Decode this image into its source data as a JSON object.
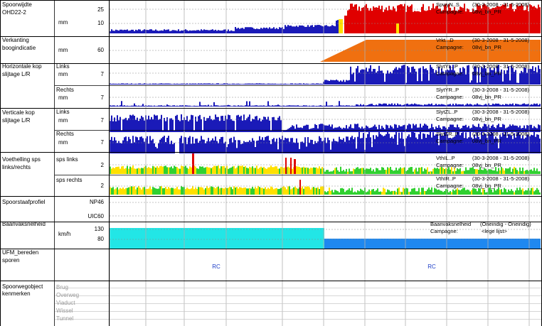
{
  "colors": {
    "blue": "#1a1ab8",
    "red": "#e00000",
    "orange": "#f07010",
    "yellow": "#ffe000",
    "green": "#30d030",
    "cyan": "#22e6e6",
    "azure": "#1e88f0",
    "rc": "#2040c8",
    "grid": "#b0b0b0"
  },
  "rows": {
    "spoorwijdte": {
      "label1": "Spoorwijdte",
      "label2": "OHD22-2",
      "unit": "mm",
      "ticks": [
        "25",
        "10"
      ],
      "info_name": "SpwyN..S",
      "info_dates": "(30-3-2008 - 31-5-2008)",
      "info_campaign_label": "Campagne:",
      "info_campaign": "08vj_bn_PR"
    },
    "verkanting": {
      "label1": "Verkanting",
      "label2": "boogindicatie",
      "unit": "mm",
      "ticks": [
        "60"
      ],
      "info_name": "Vrkt...D",
      "info_dates": "(30-3-2008 - 31-5-2008)",
      "info_campaign_label": "Campagne:",
      "info_campaign": "08vj_bn_PR"
    },
    "horizontale": {
      "label1": "Horizontale kop",
      "label2": "slijtage L/R",
      "sub1": "Links",
      "sub2": "Rechts",
      "unit": "mm",
      "tick1": "7",
      "tick2": "7",
      "info1_name": "SlytYL..P",
      "info1_dates": "(30-3-2008 - 31-5-2008)",
      "info2_name": "SlytYR..P",
      "info2_dates": "(30-3-2008 - 31-5-2008)",
      "info_campaign_label": "Campagne:",
      "info_campaign": "08vj_bn_PR"
    },
    "verticale": {
      "label1": "Verticale kop",
      "label2": "slijtage L/R",
      "sub1": "Links",
      "sub2": "Rechts",
      "unit": "mm",
      "tick1": "7",
      "tick2": "7",
      "info1_name": "SlytZL..P",
      "info1_dates": "(30-3-2008 - 31-5-2008)",
      "info2_name": "SlytZR..P",
      "info2_dates": "(30-3-2008 - 31-5-2008)",
      "info_campaign_label": "Campagne:",
      "info_campaign": "08vj_bn_PR"
    },
    "voethelling": {
      "label1": "Voethelling sps",
      "label2": "links/rechts",
      "sub1": "sps links",
      "sub2": "sps rechts",
      "tick1": "2",
      "tick2": "2",
      "info1_name": "VthIL..P",
      "info1_dates": "(30-3-2008 - 31-5-2008)",
      "info2_name": "VthIR..P",
      "info2_dates": "(30-3-2008 - 31-5-2008)",
      "info_campaign_label": "Campagne:",
      "info_campaign": "08vj_bn_PR"
    },
    "spoorstaafprofiel": {
      "label1": "Spoorstaafprofiel",
      "tick1": "NP46",
      "tick2": "UIC60"
    },
    "baanvaksnelheid": {
      "label1": "Baanvaksnelheid",
      "unit": "km/h",
      "tick1": "130",
      "tick2": "80",
      "info_name": "Baanvaksnelheid",
      "info_dates": "(Oneindig - Oneindig)",
      "info_campaign_label": "Campagne:",
      "info_campaign": "<lege lijst>"
    },
    "ufm": {
      "label1": "UFM_bereden",
      "label2": "sporen",
      "rc_left": "RC",
      "rc_right": "RC"
    },
    "objecten": {
      "label1": "Spoorwegobject",
      "label2": "kenmerken",
      "items": [
        "Brug",
        "Overweg",
        "Viaduct",
        "Wissel",
        "Tunnel"
      ]
    }
  }
}
